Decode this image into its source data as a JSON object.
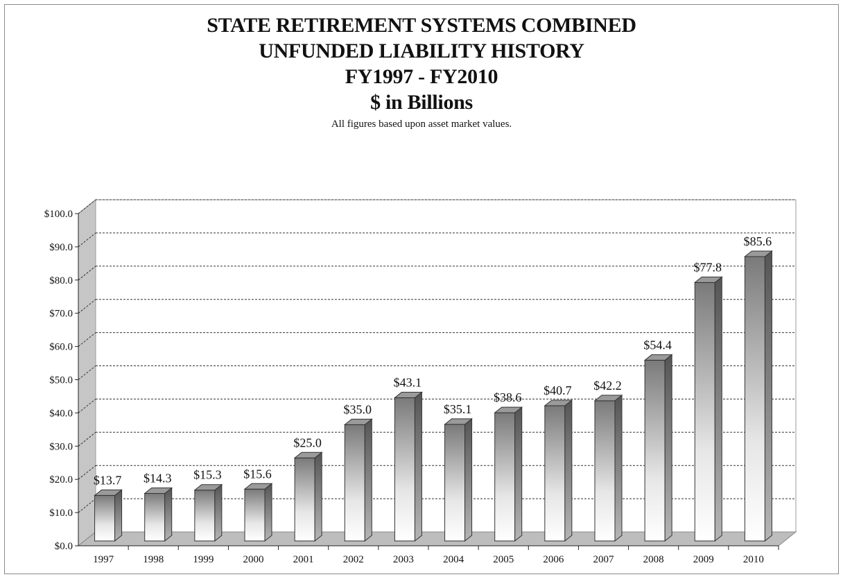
{
  "chart_data": {
    "type": "bar",
    "title": [
      "STATE RETIREMENT SYSTEMS COMBINED",
      "UNFUNDED LIABILITY HISTORY",
      "FY1997 - FY2010",
      "$ in Billions"
    ],
    "subtitle": "All figures based upon asset market values.",
    "categories": [
      "1997",
      "1998",
      "1999",
      "2000",
      "2001",
      "2002",
      "2003",
      "2004",
      "2005",
      "2006",
      "2007",
      "2008",
      "2009",
      "2010"
    ],
    "values": [
      13.7,
      14.3,
      15.3,
      15.6,
      25.0,
      35.0,
      43.1,
      35.1,
      38.6,
      40.7,
      42.2,
      54.4,
      77.8,
      85.6
    ],
    "data_labels": [
      "$13.7",
      "$14.3",
      "$15.3",
      "$15.6",
      "$25.0",
      "$35.0",
      "$43.1",
      "$35.1",
      "$38.6",
      "$40.7",
      "$42.2",
      "$54.4",
      "$77.8",
      "$85.6"
    ],
    "y_ticks": [
      "$0.0",
      "$10.0",
      "$20.0",
      "$30.0",
      "$40.0",
      "$50.0",
      "$60.0",
      "$70.0",
      "$80.0",
      "$90.0",
      "$100.0"
    ],
    "ylim": [
      0,
      100
    ],
    "y_step": 10,
    "xlabel": "",
    "ylabel": "",
    "grid": true,
    "legend": "none",
    "style": "3d-bar",
    "colors": {
      "bar_light": "#ffffff",
      "bar_dark": "#7a7a7a",
      "bar_side": "#8c8c8c",
      "bar_top": "#9a9a9a",
      "floor": "#bdbdbd",
      "wall_left": "#c6c6c6",
      "grid": "#333333",
      "axis": "#222222"
    }
  }
}
